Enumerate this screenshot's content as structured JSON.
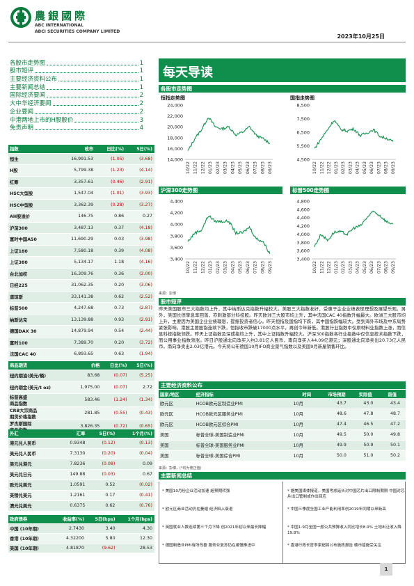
{
  "header": {
    "company_cn": "農銀國際",
    "company_en1": "ABC INTERNATIONAL",
    "company_en2": "ABCI SECURITIES COMPANY LIMITED",
    "date": "2023年10月25日"
  },
  "toc": [
    {
      "label": "各股市走势图",
      "page": "1"
    },
    {
      "label": "股市短评",
      "page": "1"
    },
    {
      "label": "主要经济资料公布",
      "page": "1"
    },
    {
      "label": "主要新闻总结",
      "page": "1"
    },
    {
      "label": "国际经济要闻",
      "page": "2"
    },
    {
      "label": "大中华经济要闻",
      "page": "2"
    },
    {
      "label": "企业要闻",
      "page": "2"
    },
    {
      "label": "中港两地上市的H股股价",
      "page": "3"
    },
    {
      "label": "免责声明",
      "page": "4"
    }
  ],
  "banner_title": "每天导读",
  "sections": {
    "charts": "各股市走势图",
    "commentary": "股市短评",
    "econ": "主要经济资料公布",
    "news": "主要新闻总结"
  },
  "charts": {
    "xticks": [
      "10/22",
      "11/22",
      "12/22",
      "01/23",
      "02/23",
      "03/23",
      "04/23",
      "05/23",
      "06/23",
      "07/23",
      "08/23",
      "09/23"
    ],
    "hsi": {
      "title": "恒指走势图",
      "yticks": [
        "24,000",
        "22,000",
        "20,000",
        "18,000",
        "16,000",
        "14,000"
      ]
    },
    "hscei": {
      "title": "国指走势图",
      "yticks": [
        "8,500",
        "7,500",
        "6,500",
        "5,500",
        "4,500"
      ]
    },
    "csi300": {
      "title": "沪深300走势图",
      "yticks": [
        "4,400",
        "4,200",
        "4,000",
        "3,800",
        "3,600",
        "3,400"
      ]
    },
    "sp500": {
      "title": "标普500走势图",
      "yticks": [
        "4,800",
        "4,600",
        "4,400",
        "4,200",
        "4,000",
        "3,800",
        "3,600",
        "3,400"
      ]
    },
    "source": "来源：彭博"
  },
  "chart_data": [
    {
      "type": "line",
      "title": "恒指走势图",
      "ylim": [
        14000,
        24000
      ],
      "x": [
        "10/22",
        "11/22",
        "12/22",
        "01/23",
        "02/23",
        "03/23",
        "04/23",
        "05/23",
        "06/23",
        "07/23",
        "08/23",
        "09/23",
        "10/23"
      ],
      "y": [
        15500,
        17800,
        19500,
        21800,
        20000,
        19600,
        20000,
        18500,
        19000,
        20000,
        18400,
        17800,
        16990
      ]
    },
    {
      "type": "line",
      "title": "国指走势图",
      "ylim": [
        4500,
        8500
      ],
      "x": [
        "10/22",
        "11/22",
        "12/22",
        "01/23",
        "02/23",
        "03/23",
        "04/23",
        "05/23",
        "06/23",
        "07/23",
        "08/23",
        "09/23",
        "10/23"
      ],
      "y": [
        5300,
        6000,
        6700,
        7400,
        6700,
        6600,
        6750,
        6250,
        6450,
        6700,
        6200,
        6050,
        5800
      ]
    },
    {
      "type": "line",
      "title": "沪深300走势图",
      "ylim": [
        3400,
        4400
      ],
      "x": [
        "10/22",
        "11/22",
        "12/22",
        "01/23",
        "02/23",
        "03/23",
        "04/23",
        "05/23",
        "06/23",
        "07/23",
        "08/23",
        "09/23",
        "10/23"
      ],
      "y": [
        3700,
        3850,
        3900,
        4150,
        4050,
        4050,
        4050,
        3850,
        3850,
        3950,
        3750,
        3700,
        3487
      ]
    },
    {
      "type": "line",
      "title": "标普500走势图",
      "ylim": [
        3400,
        4800
      ],
      "x": [
        "10/22",
        "11/22",
        "12/22",
        "01/23",
        "02/23",
        "03/23",
        "04/23",
        "05/23",
        "06/23",
        "07/23",
        "08/23",
        "09/23",
        "10/23"
      ],
      "y": [
        3700,
        4000,
        3850,
        4050,
        4050,
        4000,
        4150,
        4200,
        4400,
        4550,
        4450,
        4300,
        4250
      ]
    }
  ],
  "indices": {
    "headers": [
      "指数",
      "收市",
      "日比(%)",
      "5日(%)"
    ],
    "rows": [
      [
        "恒生",
        "16,991.53",
        "(1.05)",
        "(3.68)"
      ],
      [
        "H股",
        "5,799.38",
        "(1.23)",
        "(4.14)"
      ],
      [
        "红筹",
        "3,357.61",
        "(0.46)",
        "(2.91)"
      ],
      [
        "HSC大型股",
        "1,547.04",
        "(1.01)",
        "(3.93)"
      ],
      [
        "HSC中型股",
        "3,362.39",
        "(0.28)",
        "(3.27)"
      ],
      [
        "AH股溢价",
        "146.75",
        "0.86",
        "0.27"
      ],
      [
        "沪深300",
        "3,487.13",
        "0.37",
        "(4.18)"
      ],
      [
        "富时中国A50",
        "11,690.29",
        "0.03",
        "(3.98)"
      ],
      [
        "上证180",
        "7,580.18",
        "0.39",
        "(4.08)"
      ],
      [
        "上证380",
        "5,134.17",
        "1.18",
        "(4.16)"
      ],
      [
        "台北加权",
        "16,309.76",
        "0.36",
        "(2.00)"
      ],
      [
        "日经225",
        "31,062.35",
        "0.20",
        "(3.06)"
      ],
      [
        "道琼斯",
        "33,141.38",
        "0.62",
        "(2.52)"
      ],
      [
        "标普500",
        "4,247.68",
        "0.73",
        "(2.87)"
      ],
      [
        "纳斯达克",
        "13,139.88",
        "0.93",
        "(2.91)"
      ],
      [
        "德国DAX 30",
        "14,879.94",
        "0.54",
        "(2.44)"
      ],
      [
        "富时100",
        "7,389.70",
        "0.20",
        "(3.72)"
      ],
      [
        "法国CAC 40",
        "6,893.65",
        "0.63",
        "(1.94)"
      ]
    ]
  },
  "commodities": {
    "headers": [
      "商品期货",
      "价格",
      "日比(%)",
      "5日(%)"
    ],
    "rows": [
      [
        "纽约期油(美元/桶)",
        "83.68",
        "(0.07)",
        "(5.25)"
      ],
      [
        "纽约期金(美元/t oz)",
        "1,975.00",
        "(0.07)",
        "2.72"
      ],
      [
        "标普高盛\n商品指数",
        "583.46",
        "(1.24)",
        "(1.34)"
      ],
      [
        "CRB大宗商品\n期货价格指数",
        "281.85",
        "(0.55)",
        "(0.43)"
      ],
      [
        "罗杰斯国际\n商品指数",
        "3,826.35",
        "(0.72)",
        "(0.65)"
      ]
    ]
  },
  "fx": {
    "headers": [
      "外汇",
      "汇率",
      "5日(%)",
      "1个月(%)"
    ],
    "rows": [
      [
        "港元兑人民币",
        "0.9348",
        "(0.12)",
        "(0.13)"
      ],
      [
        "美元兑人民币",
        "7.3130",
        "(0.20)",
        "(0.04)"
      ],
      [
        "美元兑港元",
        "7.8236",
        "(0.08)",
        "0.09"
      ],
      [
        "美元兑日元",
        "149.88",
        "(0.03)",
        "0.67"
      ],
      [
        "欧元兑美元",
        "1.0591",
        "0.52",
        "(0.02)"
      ],
      [
        "英镑兑美元",
        "1.2161",
        "0.17",
        "(0.41)"
      ],
      [
        "澳元兑美元",
        "0.6375",
        "0.62",
        "(0.76)"
      ]
    ]
  },
  "bonds": {
    "headers": [
      "政府债券",
      "收益率(%)",
      "5日(bps)",
      "1个月(bps)"
    ],
    "rows": [
      [
        "中国 (10年期)",
        "2.7430",
        "3.40",
        "4.30"
      ],
      [
        "香港 (10年期)",
        "4.32200",
        "5.80",
        "12.30"
      ],
      [
        "美国 (10年期)",
        "4.81870",
        "(9.62)",
        "28.53"
      ]
    ]
  },
  "commentary_text": "昨天美国股市三大指数均上升，其中纳斯达克指数升幅较大。美股三大指数收好，受惠于企业业绩表现理想及展望乐观。另外，美国长债孳息率回落，亦刺激部分科技股。昨天欧洲三大股市均上升，其中法国CAC 40指数升幅最大。欧洲三大股市均上升，主要因为美国企业业绩理想，提振投资者信心。昨天恒指及国指均下跌，其中国指跌幅较大。受到海外市场及中东局势紧张影响，港股主要股指连续下跌，恒指收市跌破17000点水平，再创今年新低。港股行业指数中仅原材料业指数上涨，而信息科技指数领跌。昨天上证指数及深成指均上升，其中上证指数升幅较大。沪深300指数各行业指数中仅信息技术指数下跌，而公用事业指数领涨。昨日沪股通北向净买入约3.81亿人民币，南向净买入44.09亿港元；深股通北向净卖出20.73亿人民币，南向净卖出2.03亿港元。今天将公布德国10月IFO商业景气指数以及美国9月新屋销售环比。",
  "econ": {
    "headers": [
      "国家/地区",
      "经济指标",
      "时间",
      "市场预期",
      "实际值",
      "前值"
    ],
    "rows": [
      [
        "欧元区",
        "HCOB欧元区制造业PMI",
        "10月",
        "43.7",
        "43.0",
        "43.4"
      ],
      [
        "欧元区",
        "HCOB欧元区服务业PMI",
        "10月",
        "48.6",
        "47.8",
        "48.7"
      ],
      [
        "欧元区",
        "HCOB欧元区综合PMI",
        "10月",
        "47.4",
        "46.5",
        "47.2"
      ],
      [
        "美国",
        "标普全球-美国制造业PMI",
        "10月",
        "49.5",
        "50.0",
        "49.8"
      ],
      [
        "美国",
        "标普全球-美国服务业PMI",
        "10月",
        "49.9",
        "50.9",
        "50.1"
      ],
      [
        "美国",
        "标普全球-美国综合PMI",
        "10月",
        "50.0",
        "51.0",
        "50.2"
      ]
    ],
    "source": "来源：彭博，(*均为修正值)"
  },
  "news": {
    "left": [
      "美国10月份企业活动加速 超预期转强",
      "欧元区商业活动仍在萎缩 经济陷入衰退",
      "英国就业人数连续第三个月下降 创2021年初以来最长降幅",
      "德国制造业PMI有所改善 服务业复苏仍在缓慢推进中"
    ],
    "right": [
      "据美国媒体报道，美国考虑延长对中国芯片出口限制期限 中国对芯片出口管制或作出回应",
      "中国三季度全国工业产能利用率创2019年同期以来新高",
      "中国1-9月全国一般公共预算收入同比增长8.9% 土地出让收入降19.8%",
      "香港行政长官李家超将公布施政报告 楼市措施受关注"
    ]
  },
  "page_number": "1",
  "colors": {
    "brand": "#0f8f4b",
    "negative": "#c00000"
  }
}
